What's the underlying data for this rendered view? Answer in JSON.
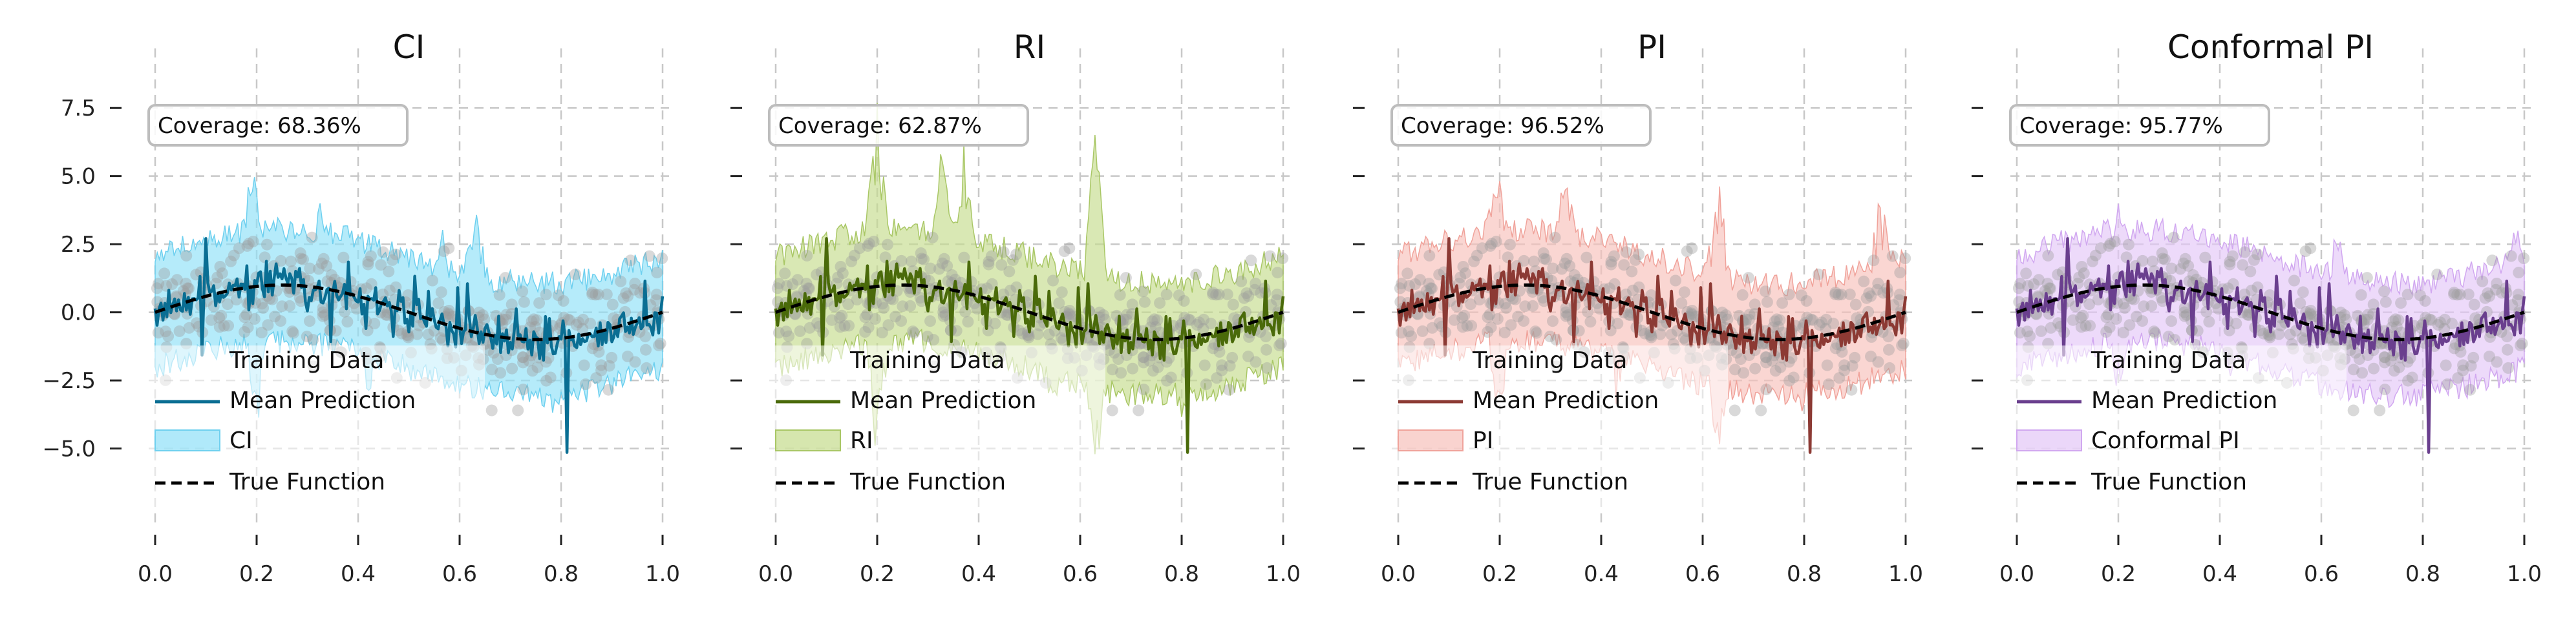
{
  "chart_data": [
    {
      "type": "line",
      "title": "CI",
      "coverage_label": "Coverage: 68.36%",
      "xlim": [
        0.0,
        1.0
      ],
      "ylim": [
        -7.5,
        8.5
      ],
      "x_ticks": [
        0.0,
        0.2,
        0.4,
        0.6,
        0.8,
        1.0
      ],
      "x_tick_labels": [
        "0.0",
        "0.2",
        "0.4",
        "0.6",
        "0.8",
        "1.0"
      ],
      "y_ticks": [
        7.5,
        5.0,
        2.5,
        0.0,
        -2.5,
        -5.0
      ],
      "y_tick_labels": [
        "7.5",
        "5.0",
        "2.5",
        "0.0",
        "−2.5",
        "−5.0"
      ],
      "grid": true,
      "legend_position": "lower-left",
      "colors": {
        "mean": "#0a6e93",
        "band": "#8ee0f8",
        "band_edge": "#6fd0ef",
        "true": "#000000",
        "points": "#9a9a9a"
      },
      "legend": [
        "Training Data",
        "Mean Prediction",
        "CI",
        "True Function"
      ],
      "band_peaks": [
        [
          0.19,
          6.0
        ],
        [
          0.33,
          4.7
        ],
        [
          0.63,
          5.4
        ],
        [
          0.57,
          3.4
        ],
        [
          0.2,
          -5.0
        ],
        [
          0.42,
          -3.6
        ],
        [
          0.78,
          -4.0
        ],
        [
          0.92,
          -3.0
        ]
      ],
      "series": [
        {
          "name": "Training Data",
          "kind": "scatter"
        },
        {
          "name": "Mean Prediction",
          "kind": "line"
        },
        {
          "name": "CI",
          "kind": "band"
        },
        {
          "name": "True Function",
          "kind": "line",
          "x": [
            0.0,
            0.1,
            0.2,
            0.25,
            0.3,
            0.4,
            0.5,
            0.6,
            0.7,
            0.75,
            0.8,
            0.9,
            1.0
          ],
          "y": [
            0.0,
            0.59,
            0.95,
            1.0,
            0.95,
            0.59,
            0.0,
            -0.59,
            -0.95,
            -1.0,
            -0.95,
            -0.59,
            0.0
          ]
        }
      ]
    },
    {
      "type": "line",
      "title": "RI",
      "coverage_label": "Coverage: 62.87%",
      "xlim": [
        0.0,
        1.0
      ],
      "ylim": [
        -7.5,
        8.5
      ],
      "x_ticks": [
        0.0,
        0.2,
        0.4,
        0.6,
        0.8,
        1.0
      ],
      "x_tick_labels": [
        "0.0",
        "0.2",
        "0.4",
        "0.6",
        "0.8",
        "1.0"
      ],
      "y_ticks": [
        7.5,
        5.0,
        2.5,
        0.0,
        -2.5,
        -5.0
      ],
      "y_tick_labels": [
        "",
        "",
        "",
        "",
        "",
        ""
      ],
      "grid": true,
      "legend_position": "lower-left",
      "colors": {
        "mean": "#4a6a0a",
        "band": "#c5dc8c",
        "band_edge": "#a9c766",
        "true": "#000000",
        "points": "#9a9a9a"
      },
      "legend": [
        "Training Data",
        "Mean Prediction",
        "RI",
        "True Function"
      ],
      "band_peaks": [
        [
          0.2,
          8.0
        ],
        [
          0.33,
          7.6
        ],
        [
          0.37,
          6.6
        ],
        [
          0.63,
          6.9
        ],
        [
          0.2,
          -6.0
        ],
        [
          0.63,
          -6.4
        ],
        [
          0.55,
          -4.5
        ],
        [
          0.8,
          -4.5
        ]
      ],
      "series": [
        {
          "name": "Training Data",
          "kind": "scatter"
        },
        {
          "name": "Mean Prediction",
          "kind": "line"
        },
        {
          "name": "RI",
          "kind": "band"
        },
        {
          "name": "True Function",
          "kind": "line",
          "x": [
            0.0,
            0.1,
            0.2,
            0.25,
            0.3,
            0.4,
            0.5,
            0.6,
            0.7,
            0.75,
            0.8,
            0.9,
            1.0
          ],
          "y": [
            0.0,
            0.59,
            0.95,
            1.0,
            0.95,
            0.59,
            0.0,
            -0.59,
            -0.95,
            -1.0,
            -0.95,
            -0.59,
            0.0
          ]
        }
      ]
    },
    {
      "type": "line",
      "title": "PI",
      "coverage_label": "Coverage: 96.52%",
      "xlim": [
        0.0,
        1.0
      ],
      "ylim": [
        -7.5,
        8.5
      ],
      "x_ticks": [
        0.0,
        0.2,
        0.4,
        0.6,
        0.8,
        1.0
      ],
      "x_tick_labels": [
        "0.0",
        "0.2",
        "0.4",
        "0.6",
        "0.8",
        "1.0"
      ],
      "y_ticks": [
        7.5,
        5.0,
        2.5,
        0.0,
        -2.5,
        -5.0
      ],
      "y_tick_labels": [
        "",
        "",
        "",
        "",
        "",
        ""
      ],
      "grid": true,
      "legend_position": "lower-left",
      "colors": {
        "mean": "#8c3a34",
        "band": "#f7c0ba",
        "band_edge": "#f0a39b",
        "true": "#000000",
        "points": "#9a9a9a"
      },
      "legend": [
        "Training Data",
        "Mean Prediction",
        "PI",
        "True Function"
      ],
      "band_peaks": [
        [
          0.19,
          6.6
        ],
        [
          0.33,
          6.0
        ],
        [
          0.63,
          5.6
        ],
        [
          0.95,
          5.0
        ],
        [
          0.2,
          -5.0
        ],
        [
          0.63,
          -5.6
        ],
        [
          0.8,
          -4.2
        ],
        [
          0.43,
          -3.5
        ]
      ],
      "series": [
        {
          "name": "Training Data",
          "kind": "scatter"
        },
        {
          "name": "Mean Prediction",
          "kind": "line"
        },
        {
          "name": "PI",
          "kind": "band"
        },
        {
          "name": "True Function",
          "kind": "line",
          "x": [
            0.0,
            0.1,
            0.2,
            0.25,
            0.3,
            0.4,
            0.5,
            0.6,
            0.7,
            0.75,
            0.8,
            0.9,
            1.0
          ],
          "y": [
            0.0,
            0.59,
            0.95,
            1.0,
            0.95,
            0.59,
            0.0,
            -0.59,
            -0.95,
            -1.0,
            -0.95,
            -0.59,
            0.0
          ]
        }
      ]
    },
    {
      "type": "line",
      "title": "Conformal PI",
      "coverage_label": "Coverage: 95.77%",
      "xlim": [
        0.0,
        1.0
      ],
      "ylim": [
        -7.5,
        8.5
      ],
      "x_ticks": [
        0.0,
        0.2,
        0.4,
        0.6,
        0.8,
        1.0
      ],
      "x_tick_labels": [
        "0.0",
        "0.2",
        "0.4",
        "0.6",
        "0.8",
        "1.0"
      ],
      "y_ticks": [
        7.5,
        5.0,
        2.5,
        0.0,
        -2.5,
        -5.0
      ],
      "y_tick_labels": [
        "",
        "",
        "",
        "",
        "",
        ""
      ],
      "grid": true,
      "legend_position": "lower-left",
      "colors": {
        "mean": "#6a3f8e",
        "band": "#e3c6f7",
        "band_edge": "#d1a8f0",
        "true": "#000000",
        "points": "#9a9a9a"
      },
      "legend": [
        "Training Data",
        "Mean Prediction",
        "Conformal PI",
        "True Function"
      ],
      "band_peaks": [
        [
          0.2,
          4.1
        ],
        [
          0.33,
          3.6
        ],
        [
          0.63,
          3.5
        ],
        [
          0.98,
          4.6
        ],
        [
          0.2,
          -3.4
        ],
        [
          0.63,
          -3.2
        ],
        [
          0.82,
          -3.4
        ],
        [
          0.42,
          -2.8
        ]
      ],
      "series": [
        {
          "name": "Training Data",
          "kind": "scatter"
        },
        {
          "name": "Mean Prediction",
          "kind": "line"
        },
        {
          "name": "Conformal PI",
          "kind": "band"
        },
        {
          "name": "True Function",
          "kind": "line",
          "x": [
            0.0,
            0.1,
            0.2,
            0.25,
            0.3,
            0.4,
            0.5,
            0.6,
            0.7,
            0.75,
            0.8,
            0.9,
            1.0
          ],
          "y": [
            0.0,
            0.59,
            0.95,
            1.0,
            0.95,
            0.59,
            0.0,
            -0.59,
            -0.95,
            -1.0,
            -0.95,
            -0.59,
            0.0
          ]
        }
      ]
    }
  ]
}
